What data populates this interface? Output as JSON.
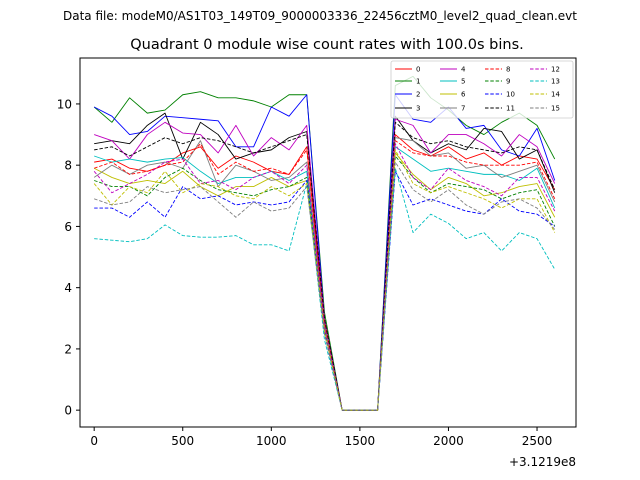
{
  "chart_data": {
    "type": "line",
    "suptitle": "Data file: modeM0/AS1T03_149T09_9000003336_22456cztM0_level2_quad_clean.evt",
    "title": "Quadrant 0 module wise count rates with 100.0s bins.",
    "xlabel": "",
    "ylabel": "",
    "x_offset_label": "+3.1219e8",
    "xlim": [
      -80,
      2720
    ],
    "ylim": [
      -0.55,
      11.5
    ],
    "x_ticks": [
      0,
      500,
      1000,
      1500,
      2000,
      2500
    ],
    "x_tick_labels": [
      "0",
      "500",
      "1000",
      "1500",
      "2000",
      "2500"
    ],
    "y_ticks": [
      0,
      2,
      4,
      6,
      8,
      10
    ],
    "y_tick_labels": [
      "0",
      "2",
      "4",
      "6",
      "8",
      "10"
    ],
    "legend_position": "top-right",
    "x": [
      0,
      100,
      200,
      300,
      400,
      500,
      600,
      700,
      800,
      900,
      1000,
      1100,
      1200,
      1300,
      1400,
      1500,
      1600,
      1700,
      1800,
      1900,
      2000,
      2100,
      2200,
      2300,
      2400,
      2500,
      2600
    ],
    "series": [
      {
        "name": "0",
        "color": "#ff0000",
        "dash": "solid",
        "values": [
          8.1,
          8.2,
          7.9,
          7.8,
          8.0,
          8.4,
          8.6,
          7.9,
          8.3,
          8.1,
          7.8,
          7.7,
          8.6,
          2.8,
          0,
          0,
          0,
          9.0,
          8.5,
          8.3,
          8.6,
          8.2,
          8.4,
          8.0,
          8.3,
          8.2,
          7.2
        ]
      },
      {
        "name": "1",
        "color": "#008000",
        "dash": "solid",
        "values": [
          9.9,
          9.4,
          10.2,
          9.7,
          9.8,
          10.3,
          10.4,
          10.2,
          10.2,
          10.1,
          9.9,
          10.3,
          10.3,
          3.2,
          0,
          0,
          0,
          10.6,
          10.9,
          10.2,
          9.8,
          9.3,
          9.0,
          9.4,
          9.7,
          9.3,
          8.2
        ]
      },
      {
        "name": "2",
        "color": "#0000ff",
        "dash": "solid",
        "values": [
          9.9,
          9.6,
          9.0,
          9.1,
          9.6,
          9.55,
          9.5,
          9.45,
          8.6,
          8.6,
          9.9,
          9.6,
          10.3,
          3.0,
          0,
          0,
          0,
          10.3,
          9.5,
          9.4,
          9.9,
          9.2,
          9.3,
          8.5,
          8.3,
          9.2,
          7.5
        ]
      },
      {
        "name": "3",
        "color": "#000000",
        "dash": "solid",
        "values": [
          8.7,
          8.8,
          8.7,
          9.3,
          9.7,
          8.2,
          9.4,
          9.0,
          8.2,
          8.4,
          8.5,
          8.9,
          9.1,
          2.9,
          0,
          0,
          0,
          9.6,
          8.8,
          8.4,
          8.7,
          8.5,
          9.2,
          9.1,
          8.2,
          8.5,
          7.1
        ]
      },
      {
        "name": "4",
        "color": "#bf00bf",
        "dash": "solid",
        "values": [
          9.0,
          8.8,
          8.2,
          9.0,
          9.4,
          9.05,
          9.0,
          8.4,
          9.3,
          8.3,
          8.9,
          8.5,
          9.3,
          3.0,
          0,
          0,
          0,
          9.5,
          9.3,
          8.4,
          9.0,
          9.0,
          8.7,
          8.3,
          9.0,
          8.6,
          7.4
        ]
      },
      {
        "name": "5",
        "color": "#00bfbf",
        "dash": "solid",
        "values": [
          8.3,
          8.1,
          8.2,
          8.1,
          8.2,
          8.25,
          7.8,
          7.4,
          7.6,
          7.6,
          7.8,
          7.5,
          7.8,
          2.7,
          0,
          0,
          0,
          8.6,
          8.2,
          7.8,
          7.9,
          7.8,
          7.7,
          7.7,
          7.5,
          7.9,
          6.6
        ]
      },
      {
        "name": "6",
        "color": "#bfbf00",
        "dash": "solid",
        "values": [
          7.9,
          7.6,
          7.4,
          7.5,
          7.4,
          7.8,
          7.3,
          7.0,
          7.3,
          7.3,
          7.6,
          7.3,
          7.5,
          2.6,
          0,
          0,
          0,
          8.4,
          7.7,
          7.2,
          7.6,
          7.4,
          7.0,
          7.1,
          7.3,
          7.4,
          6.3
        ]
      },
      {
        "name": "7",
        "color": "#7f7f7f",
        "dash": "solid",
        "values": [
          7.6,
          8.0,
          7.7,
          8.0,
          8.1,
          7.9,
          8.8,
          7.3,
          8.0,
          7.8,
          7.5,
          7.6,
          8.1,
          2.8,
          0,
          0,
          0,
          8.9,
          8.8,
          8.3,
          8.4,
          7.9,
          8.0,
          7.6,
          7.8,
          8.0,
          6.8
        ]
      },
      {
        "name": "8",
        "color": "#ff0000",
        "dash": "dashed",
        "values": [
          7.9,
          8.1,
          7.7,
          7.8,
          8.0,
          8.1,
          8.7,
          7.7,
          8.1,
          7.8,
          7.9,
          7.7,
          8.5,
          2.9,
          0,
          0,
          0,
          8.8,
          8.4,
          8.3,
          8.3,
          8.1,
          8.0,
          8.0,
          8.0,
          8.1,
          6.9
        ]
      },
      {
        "name": "9",
        "color": "#008000",
        "dash": "dashed",
        "values": [
          7.5,
          7.3,
          7.3,
          7.0,
          7.6,
          7.9,
          7.5,
          7.2,
          7.1,
          7.0,
          7.2,
          7.3,
          7.6,
          2.6,
          0,
          0,
          0,
          8.3,
          7.6,
          7.1,
          7.4,
          7.3,
          7.2,
          6.9,
          7.1,
          7.2,
          6.0
        ]
      },
      {
        "name": "10",
        "color": "#0000ff",
        "dash": "dashed",
        "values": [
          6.6,
          6.6,
          6.3,
          6.8,
          6.3,
          7.3,
          6.9,
          7.0,
          6.7,
          6.8,
          6.7,
          6.8,
          7.5,
          2.5,
          0,
          0,
          0,
          7.8,
          6.7,
          6.9,
          6.7,
          6.5,
          6.4,
          6.9,
          6.5,
          6.4,
          6.0
        ]
      },
      {
        "name": "11",
        "color": "#000000",
        "dash": "dashed",
        "values": [
          8.5,
          8.6,
          8.3,
          8.6,
          8.9,
          8.7,
          8.9,
          8.8,
          8.6,
          8.4,
          8.6,
          8.8,
          9.0,
          3.0,
          0,
          0,
          0,
          9.4,
          8.9,
          8.7,
          8.8,
          8.6,
          8.5,
          8.4,
          8.6,
          8.5,
          7.2
        ]
      },
      {
        "name": "12",
        "color": "#bf00bf",
        "dash": "dashed",
        "values": [
          7.8,
          7.1,
          7.4,
          7.7,
          8.1,
          8.2,
          7.4,
          7.5,
          7.2,
          7.6,
          7.8,
          7.4,
          8.0,
          2.7,
          0,
          0,
          0,
          8.7,
          7.6,
          7.2,
          7.9,
          7.5,
          7.3,
          7.0,
          7.6,
          7.6,
          6.5
        ]
      },
      {
        "name": "13",
        "color": "#00bfbf",
        "dash": "dashed",
        "values": [
          5.6,
          5.55,
          5.5,
          5.6,
          6.05,
          5.7,
          5.65,
          5.65,
          5.7,
          5.4,
          5.4,
          5.2,
          7.4,
          2.3,
          0,
          0,
          0,
          7.9,
          5.8,
          6.4,
          6.1,
          5.6,
          5.8,
          5.2,
          5.8,
          5.6,
          4.6
        ]
      },
      {
        "name": "14",
        "color": "#bfbf00",
        "dash": "dashed",
        "values": [
          7.4,
          6.7,
          7.3,
          7.1,
          7.8,
          7.1,
          7.4,
          7.3,
          7.0,
          6.9,
          7.3,
          7.0,
          7.4,
          2.6,
          0,
          0,
          0,
          8.5,
          7.4,
          7.1,
          7.3,
          7.1,
          6.9,
          6.6,
          6.9,
          6.9,
          5.8
        ]
      },
      {
        "name": "15",
        "color": "#7f7f7f",
        "dash": "dashed",
        "values": [
          6.9,
          6.7,
          6.8,
          7.3,
          7.1,
          7.2,
          7.3,
          6.8,
          6.3,
          6.8,
          6.5,
          6.6,
          7.3,
          2.5,
          0,
          0,
          0,
          8.1,
          7.2,
          6.8,
          7.2,
          6.7,
          6.4,
          6.8,
          6.9,
          6.6,
          5.9
        ]
      }
    ]
  }
}
